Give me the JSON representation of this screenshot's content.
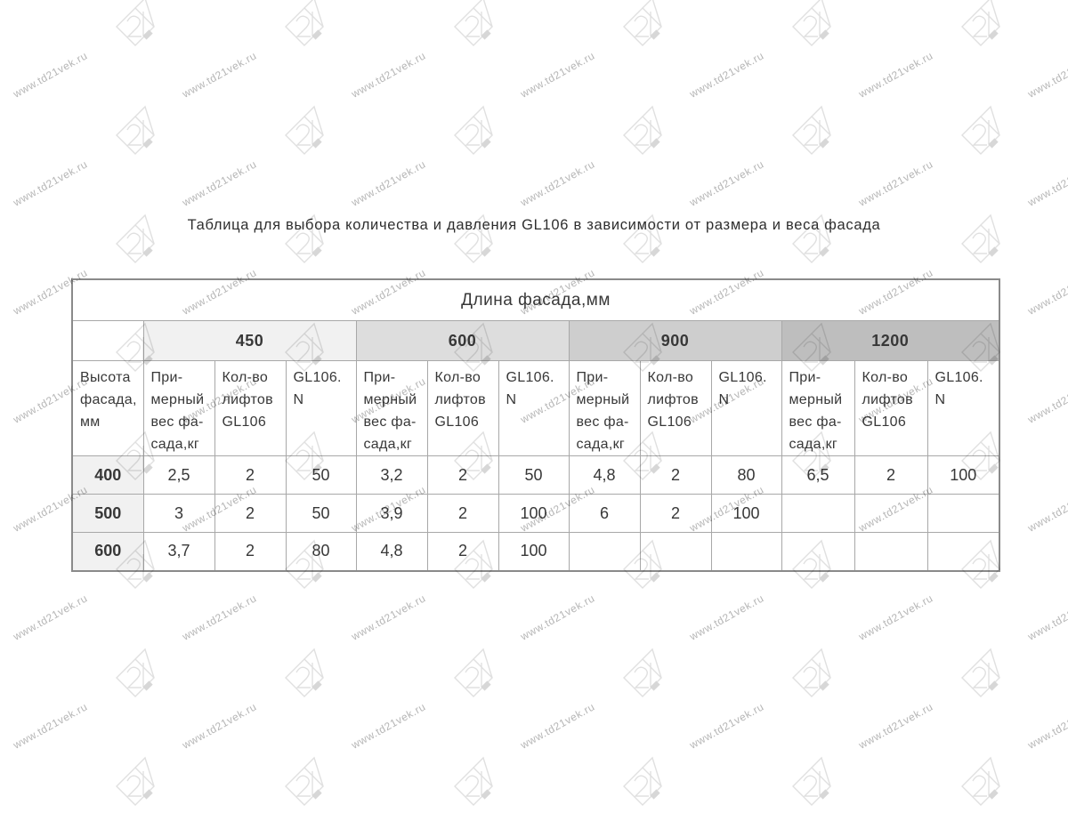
{
  "watermark": {
    "text": "www.td21vek.ru",
    "logo": "21"
  },
  "title": "Таблица для выбора количества и давления GL106 в зависимости от размера и веса фасада",
  "table": {
    "span_header": "Длина фасада,мм",
    "row_axis_label": "Высота\nфасада,\nмм",
    "groups": [
      {
        "label": "450",
        "bg": "#f1f1f1"
      },
      {
        "label": "600",
        "bg": "#dddddd"
      },
      {
        "label": "900",
        "bg": "#cecece"
      },
      {
        "label": "1200",
        "bg": "#bebebe"
      }
    ],
    "sub_headers": [
      "При-\nмерный\nвес фа-\nсада,кг",
      "Кол-во\nлифтов\nGL106",
      "GL106.\nN"
    ],
    "rows": [
      {
        "height": "400",
        "cells": [
          "2,5",
          "2",
          "50",
          "3,2",
          "2",
          "50",
          "4,8",
          "2",
          "80",
          "6,5",
          "2",
          "100"
        ]
      },
      {
        "height": "500",
        "cells": [
          "3",
          "2",
          "50",
          "3,9",
          "2",
          "100",
          "6",
          "2",
          "100",
          "",
          "",
          ""
        ]
      },
      {
        "height": "600",
        "cells": [
          "3,7",
          "2",
          "80",
          "4,8",
          "2",
          "100",
          "",
          "",
          "",
          "",
          "",
          ""
        ]
      }
    ]
  }
}
